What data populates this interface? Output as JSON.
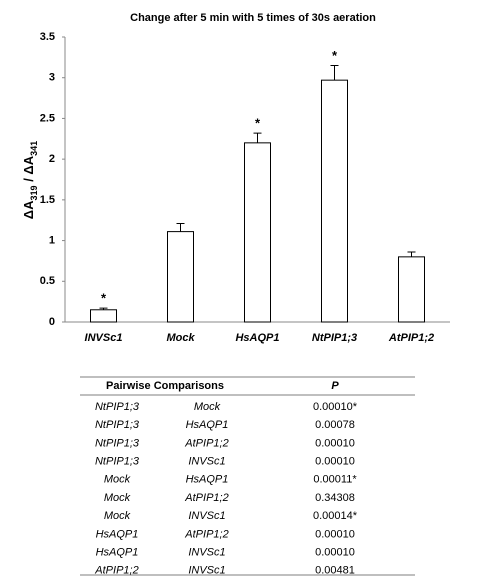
{
  "chart_data": {
    "type": "bar",
    "title": "Change after 5 min with 5 times of 30s aeration",
    "ylabel_parts": [
      "ΔA",
      "319",
      " / ΔA",
      "341"
    ],
    "categories": [
      "INVSc1",
      "Mock",
      "HsAQP1",
      "NtPIP1;3",
      "AtPIP1;2"
    ],
    "values": [
      0.15,
      1.11,
      2.2,
      2.97,
      0.8
    ],
    "errors": [
      0.02,
      0.1,
      0.12,
      0.18,
      0.06
    ],
    "significance": [
      "*",
      null,
      "*",
      "*",
      null
    ],
    "color": "#ffffff",
    "ylim": [
      0,
      3.5
    ],
    "yticks": [
      0,
      0.5,
      1,
      1.5,
      2,
      2.5,
      3,
      3.5
    ],
    "grid": false
  },
  "table": {
    "header": [
      "Pairwise Comparisons",
      "P"
    ],
    "rows": [
      [
        "NtPIP1;3",
        "Mock",
        "0.00010*"
      ],
      [
        "NtPIP1;3",
        "HsAQP1",
        "0.00078"
      ],
      [
        "NtPIP1;3",
        "AtPIP1;2",
        "0.00010"
      ],
      [
        "NtPIP1;3",
        "INVSc1",
        "0.00010"
      ],
      [
        "Mock",
        "HsAQP1",
        "0.00011*"
      ],
      [
        "Mock",
        "AtPIP1;2",
        "0.34308"
      ],
      [
        "Mock",
        "INVSc1",
        "0.00014*"
      ],
      [
        "HsAQP1",
        "AtPIP1;2",
        "0.00010"
      ],
      [
        "HsAQP1",
        "INVSc1",
        "0.00010"
      ],
      [
        "AtPIP1;2",
        "INVSc1",
        "0.00481"
      ]
    ]
  }
}
